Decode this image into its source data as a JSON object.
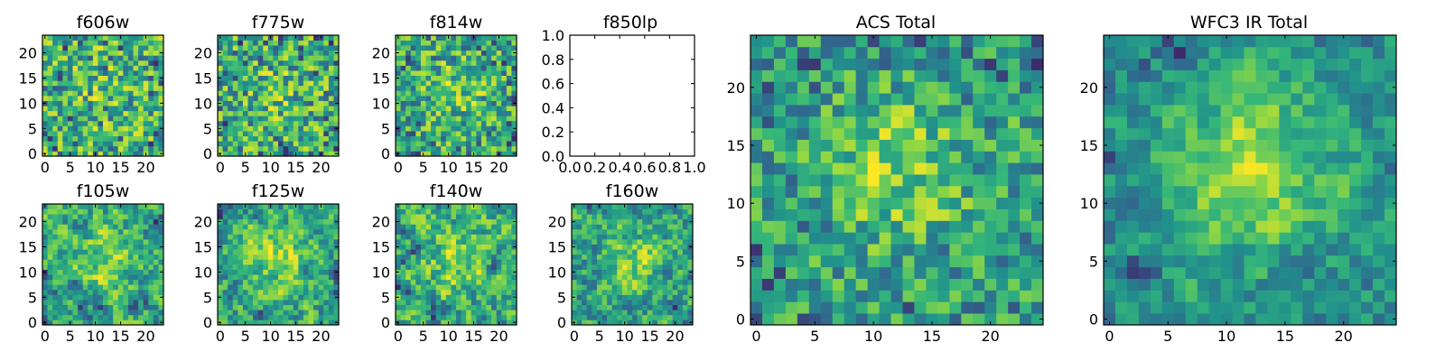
{
  "figure": {
    "background": "#ffffff",
    "colormap": "viridis",
    "colormap_stops": [
      "#440154",
      "#31688e",
      "#21918c",
      "#35b779",
      "#90d743",
      "#fde725"
    ]
  },
  "chart_data": [
    {
      "type": "heatmap",
      "title": "f606w",
      "grid_size": [
        24,
        24
      ],
      "xlim": [
        -0.5,
        23.5
      ],
      "ylim": [
        -0.5,
        23.5
      ],
      "xticks": [
        0,
        5,
        10,
        15,
        20
      ],
      "yticks": [
        0,
        5,
        10,
        15,
        20
      ],
      "seed": 606,
      "blob_strength": 0.1,
      "smooth": 0.0
    },
    {
      "type": "heatmap",
      "title": "f775w",
      "grid_size": [
        24,
        24
      ],
      "xlim": [
        -0.5,
        23.5
      ],
      "ylim": [
        -0.5,
        23.5
      ],
      "xticks": [
        0,
        5,
        10,
        15,
        20
      ],
      "yticks": [
        0,
        5,
        10,
        15,
        20
      ],
      "seed": 775,
      "blob_strength": 0.15,
      "smooth": 0.0
    },
    {
      "type": "heatmap",
      "title": "f814w",
      "grid_size": [
        24,
        24
      ],
      "xlim": [
        -0.5,
        23.5
      ],
      "ylim": [
        -0.5,
        23.5
      ],
      "xticks": [
        0,
        5,
        10,
        15,
        20
      ],
      "yticks": [
        0,
        5,
        10,
        15,
        20
      ],
      "seed": 814,
      "blob_strength": 0.25,
      "smooth": 0.0
    },
    {
      "type": "empty",
      "title": "f850lp",
      "xlim": [
        0.0,
        1.0
      ],
      "ylim": [
        0.0,
        1.0
      ],
      "xticks": [
        "0.0",
        "0.2",
        "0.4",
        "0.6",
        "0.8",
        "1.0"
      ],
      "yticks": [
        "0.0",
        "0.2",
        "0.4",
        "0.6",
        "0.8",
        "1.0"
      ]
    },
    {
      "type": "heatmap",
      "title": "f105w",
      "grid_size": [
        24,
        24
      ],
      "xlim": [
        -0.5,
        23.5
      ],
      "ylim": [
        -0.5,
        23.5
      ],
      "xticks": [
        0,
        5,
        10,
        15,
        20
      ],
      "yticks": [
        0,
        5,
        10,
        15,
        20
      ],
      "seed": 105,
      "blob_strength": 0.35,
      "smooth": 0.5
    },
    {
      "type": "heatmap",
      "title": "f125w",
      "grid_size": [
        24,
        24
      ],
      "xlim": [
        -0.5,
        23.5
      ],
      "ylim": [
        -0.5,
        23.5
      ],
      "xticks": [
        0,
        5,
        10,
        15,
        20
      ],
      "yticks": [
        0,
        5,
        10,
        15,
        20
      ],
      "seed": 125,
      "blob_strength": 0.35,
      "smooth": 0.5
    },
    {
      "type": "heatmap",
      "title": "f140w",
      "grid_size": [
        24,
        24
      ],
      "xlim": [
        -0.5,
        23.5
      ],
      "ylim": [
        -0.5,
        23.5
      ],
      "xticks": [
        0,
        5,
        10,
        15,
        20
      ],
      "yticks": [
        0,
        5,
        10,
        15,
        20
      ],
      "seed": 140,
      "blob_strength": 0.3,
      "smooth": 0.5
    },
    {
      "type": "heatmap",
      "title": "f160w",
      "grid_size": [
        24,
        24
      ],
      "xlim": [
        -0.5,
        23.5
      ],
      "ylim": [
        -0.5,
        23.5
      ],
      "xticks": [
        0,
        5,
        10,
        15,
        20
      ],
      "yticks": [
        0,
        5,
        10,
        15,
        20
      ],
      "seed": 160,
      "blob_strength": 0.3,
      "smooth": 0.5
    },
    {
      "type": "heatmap",
      "title": "ACS Total",
      "grid_size": [
        25,
        25
      ],
      "xlim": [
        -0.5,
        24.5
      ],
      "ylim": [
        -0.5,
        24.5
      ],
      "xticks": [
        0,
        5,
        10,
        15,
        20
      ],
      "yticks": [
        0,
        5,
        10,
        15,
        20
      ],
      "seed": 1234,
      "blob_strength": 0.45,
      "smooth": 0.15
    },
    {
      "type": "heatmap",
      "title": "WFC3 IR Total",
      "grid_size": [
        25,
        25
      ],
      "xlim": [
        -0.5,
        24.5
      ],
      "ylim": [
        -0.5,
        24.5
      ],
      "xticks": [
        0,
        5,
        10,
        15,
        20
      ],
      "yticks": [
        0,
        5,
        10,
        15,
        20
      ],
      "seed": 4321,
      "blob_strength": 0.6,
      "smooth": 0.55
    }
  ]
}
